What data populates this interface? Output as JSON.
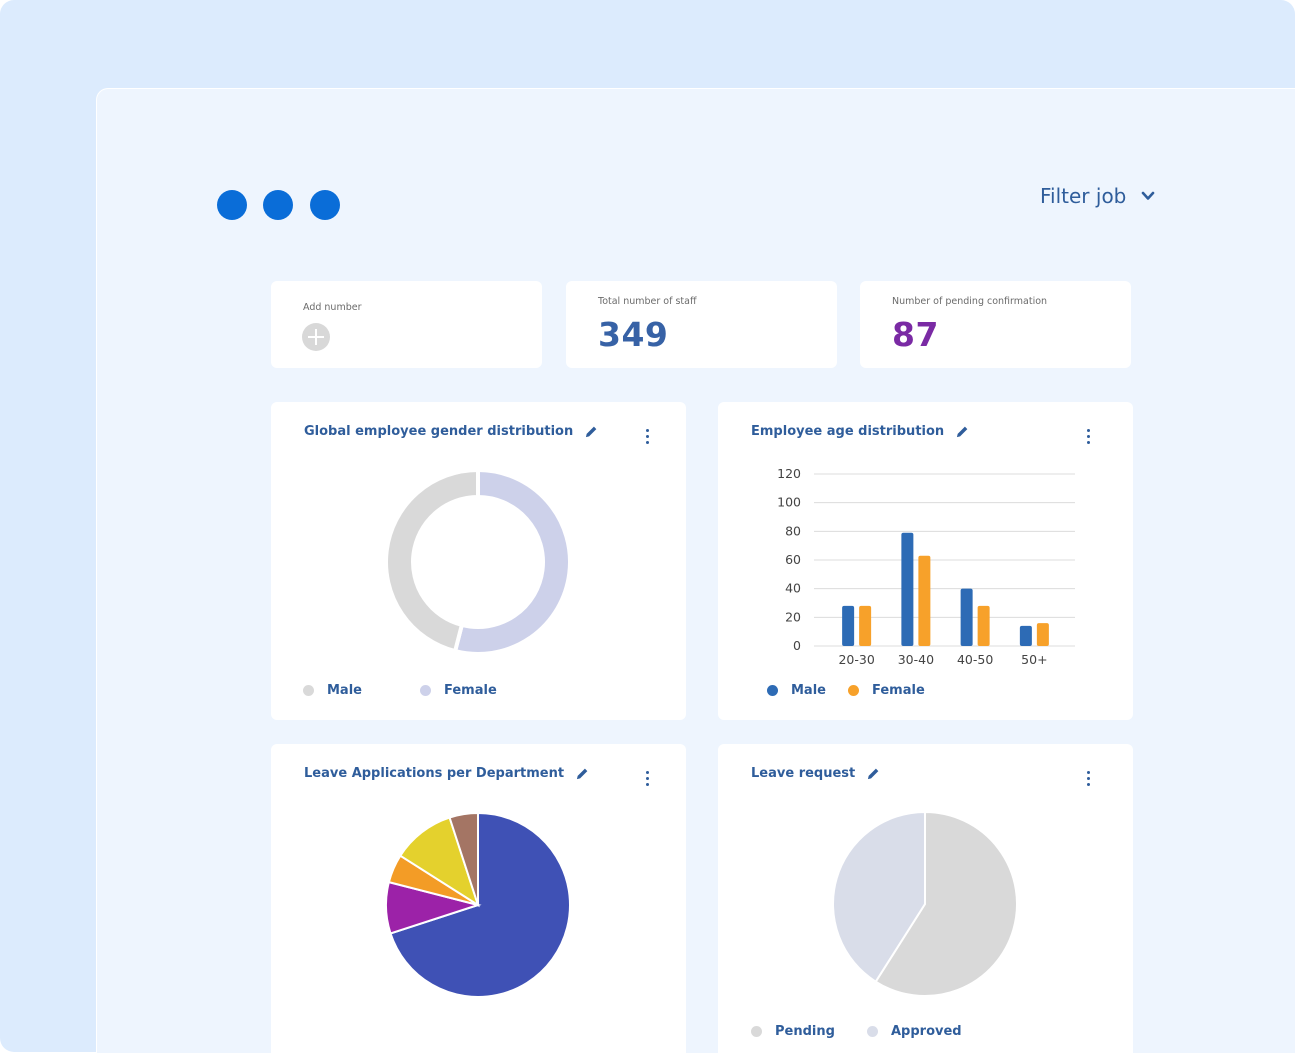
{
  "colors": {
    "background": "#dcebfd",
    "window": "#eef5fe",
    "accent": "#0a6dd8",
    "title": "#2f5d9b",
    "staff_value": "#3762a6",
    "pending_value": "#7a2aa4"
  },
  "header": {
    "filter_label": "Filter job",
    "filter_icon": "chevron-down-icon"
  },
  "stats": {
    "add": {
      "label": "Add number",
      "icon": "plus-circle-icon"
    },
    "staff": {
      "label": "Total number of staff",
      "value": "349"
    },
    "pending": {
      "label": "Number of pending confirmation",
      "value": "87"
    }
  },
  "cards": {
    "gender": {
      "title": "Global employee gender distribution"
    },
    "age": {
      "title": "Employee age distribution"
    },
    "leave_dept": {
      "title": "Leave Applications per Department"
    },
    "leave_request": {
      "title": "Leave request"
    }
  },
  "chart_data": [
    {
      "type": "pie",
      "variant": "donut",
      "title": "Global employee gender distribution",
      "labels": [
        "Male",
        "Female"
      ],
      "values": [
        46,
        54
      ],
      "colors": [
        "#d9d9d9",
        "#cdd1ea"
      ],
      "legend": "bottom"
    },
    {
      "type": "bar",
      "title": "Employee age distribution",
      "categories": [
        "20-30",
        "30-40",
        "40-50",
        "50+"
      ],
      "series": [
        {
          "name": "Male",
          "values": [
            28,
            79,
            40,
            14
          ],
          "color": "#2d6bb5"
        },
        {
          "name": "Female",
          "values": [
            28,
            63,
            28,
            16
          ],
          "color": "#f7a12a"
        }
      ],
      "ylim": [
        0,
        120
      ],
      "yticks": [
        0,
        20,
        40,
        60,
        80,
        100,
        120
      ],
      "grid": true,
      "legend": "bottom"
    },
    {
      "type": "pie",
      "title": "Leave Applications per Department",
      "values": [
        70,
        9,
        5,
        11,
        5
      ],
      "colors": [
        "#3f51b5",
        "#9c22a8",
        "#f39c26",
        "#e4d12d",
        "#a47564"
      ]
    },
    {
      "type": "pie",
      "title": "Leave request",
      "labels": [
        "Pending",
        "Approved"
      ],
      "values": [
        59,
        41
      ],
      "colors": [
        "#d9d9d9",
        "#d9dde9"
      ],
      "legend": "bottom"
    }
  ]
}
